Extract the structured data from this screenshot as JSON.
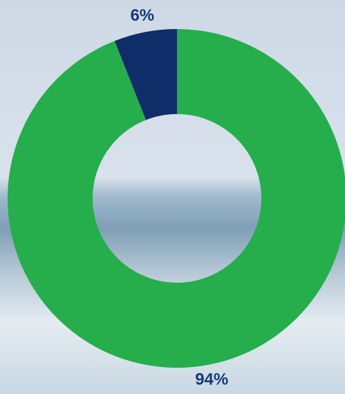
{
  "chart_data": {
    "type": "pie",
    "values": [
      94,
      6
    ],
    "value_labels": [
      "94%",
      "6%"
    ],
    "colors": [
      "#25ae4b",
      "#0f2d69"
    ]
  }
}
